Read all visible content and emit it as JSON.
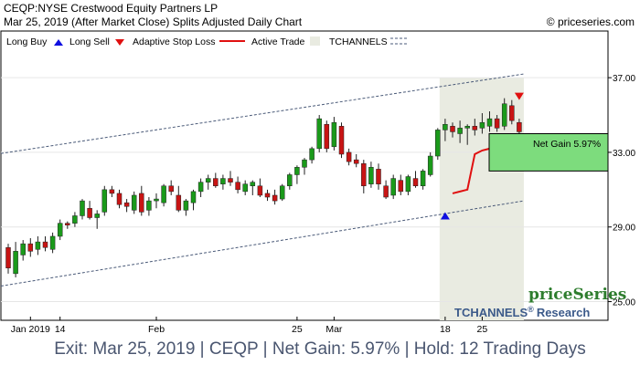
{
  "header": {
    "symbol_line": "CEQP:NYSE Crestwood Equity Partners LP",
    "date_line": "Mar 25, 2019 (After Market Close)  Splits Adjusted Daily Chart",
    "copyright": "© priceseries.com"
  },
  "legend": {
    "long_buy": "Long Buy",
    "long_sell": "Long Sell",
    "adaptive_stop": "Adaptive Stop Loss",
    "active_trade": "Active Trade",
    "tchannels": "TCHANNELS"
  },
  "watermark": {
    "brand": "priceSeries",
    "research": "TCHANNELS",
    "research_suffix": "Research",
    "registered": "®"
  },
  "annotation": {
    "net_gain": "Net Gain 5.97%"
  },
  "footer": {
    "text": "Exit: Mar 25, 2019 | CEQP | Net Gain: 5.97% | Hold: 12 Trading Days"
  },
  "colors": {
    "up_candle": "#1a9a1a",
    "down_candle": "#c81414",
    "stop_line": "#e01010",
    "active_trade_fill": "#e9ebe1",
    "gain_box": "#7ddc7d",
    "buy_arrow": "#1010e0",
    "sell_arrow": "#e01010",
    "channel": "#4a5a78",
    "footer_text": "#4a5670"
  },
  "chart_data": {
    "type": "candlestick",
    "y_ticks": [
      "37.00",
      "33.00",
      "29.00",
      "25.00"
    ],
    "ylim": [
      24.0,
      39.5
    ],
    "x_ticks": [
      {
        "label": "Jan 2019",
        "index": 3
      },
      {
        "label": "14",
        "index": 7
      },
      {
        "label": "Feb",
        "index": 20
      },
      {
        "label": "25",
        "index": 39
      },
      {
        "label": "Mar",
        "index": 44
      },
      {
        "label": "18",
        "index": 59
      },
      {
        "label": "25",
        "index": 64
      }
    ],
    "candles": [
      {
        "o": 27.9,
        "h": 28.1,
        "l": 26.5,
        "c": 26.8
      },
      {
        "o": 26.5,
        "h": 28.2,
        "l": 26.3,
        "c": 27.7
      },
      {
        "o": 27.5,
        "h": 28.3,
        "l": 27.2,
        "c": 28.1
      },
      {
        "o": 28.1,
        "h": 28.4,
        "l": 27.4,
        "c": 27.7
      },
      {
        "o": 27.8,
        "h": 28.5,
        "l": 27.5,
        "c": 28.2
      },
      {
        "o": 28.2,
        "h": 28.5,
        "l": 27.7,
        "c": 27.9
      },
      {
        "o": 27.8,
        "h": 28.7,
        "l": 27.6,
        "c": 28.5
      },
      {
        "o": 28.5,
        "h": 29.4,
        "l": 28.3,
        "c": 29.2
      },
      {
        "o": 29.2,
        "h": 29.3,
        "l": 28.9,
        "c": 29.1
      },
      {
        "o": 29.2,
        "h": 29.8,
        "l": 29.0,
        "c": 29.6
      },
      {
        "o": 29.6,
        "h": 30.5,
        "l": 29.4,
        "c": 30.4
      },
      {
        "o": 30.0,
        "h": 30.4,
        "l": 29.4,
        "c": 29.5
      },
      {
        "o": 29.5,
        "h": 29.9,
        "l": 28.9,
        "c": 29.7
      },
      {
        "o": 29.8,
        "h": 31.2,
        "l": 29.6,
        "c": 31.0
      },
      {
        "o": 31.0,
        "h": 31.2,
        "l": 30.6,
        "c": 30.8
      },
      {
        "o": 30.8,
        "h": 31.0,
        "l": 30.0,
        "c": 30.2
      },
      {
        "o": 30.3,
        "h": 30.5,
        "l": 29.8,
        "c": 30.1
      },
      {
        "o": 29.9,
        "h": 30.9,
        "l": 29.7,
        "c": 30.7
      },
      {
        "o": 30.8,
        "h": 31.2,
        "l": 29.6,
        "c": 29.8
      },
      {
        "o": 29.9,
        "h": 30.6,
        "l": 29.6,
        "c": 30.4
      },
      {
        "o": 30.4,
        "h": 30.8,
        "l": 30.0,
        "c": 30.5
      },
      {
        "o": 30.3,
        "h": 31.3,
        "l": 30.1,
        "c": 31.2
      },
      {
        "o": 31.2,
        "h": 31.5,
        "l": 30.7,
        "c": 30.9
      },
      {
        "o": 30.7,
        "h": 31.2,
        "l": 29.8,
        "c": 29.9
      },
      {
        "o": 29.9,
        "h": 30.5,
        "l": 29.6,
        "c": 30.4
      },
      {
        "o": 30.3,
        "h": 31.0,
        "l": 29.9,
        "c": 30.9
      },
      {
        "o": 30.9,
        "h": 31.6,
        "l": 30.6,
        "c": 31.4
      },
      {
        "o": 31.4,
        "h": 31.8,
        "l": 31.0,
        "c": 31.6
      },
      {
        "o": 31.6,
        "h": 31.9,
        "l": 31.1,
        "c": 31.2
      },
      {
        "o": 31.3,
        "h": 31.8,
        "l": 31.0,
        "c": 31.6
      },
      {
        "o": 31.6,
        "h": 32.0,
        "l": 31.2,
        "c": 31.4
      },
      {
        "o": 31.4,
        "h": 31.7,
        "l": 30.8,
        "c": 31.0
      },
      {
        "o": 30.9,
        "h": 31.5,
        "l": 30.7,
        "c": 31.3
      },
      {
        "o": 31.2,
        "h": 31.5,
        "l": 30.7,
        "c": 31.4
      },
      {
        "o": 31.2,
        "h": 31.6,
        "l": 30.6,
        "c": 30.7
      },
      {
        "o": 30.8,
        "h": 31.0,
        "l": 30.4,
        "c": 30.6
      },
      {
        "o": 30.7,
        "h": 31.0,
        "l": 30.2,
        "c": 30.4
      },
      {
        "o": 30.5,
        "h": 31.3,
        "l": 30.4,
        "c": 31.2
      },
      {
        "o": 31.2,
        "h": 31.9,
        "l": 31.0,
        "c": 31.8
      },
      {
        "o": 31.8,
        "h": 32.3,
        "l": 31.3,
        "c": 32.2
      },
      {
        "o": 32.2,
        "h": 32.7,
        "l": 31.8,
        "c": 32.6
      },
      {
        "o": 32.6,
        "h": 33.3,
        "l": 32.4,
        "c": 33.2
      },
      {
        "o": 33.2,
        "h": 35.0,
        "l": 33.0,
        "c": 34.8
      },
      {
        "o": 34.5,
        "h": 34.7,
        "l": 33.0,
        "c": 33.2
      },
      {
        "o": 33.3,
        "h": 34.9,
        "l": 33.1,
        "c": 34.6
      },
      {
        "o": 34.4,
        "h": 34.6,
        "l": 32.7,
        "c": 32.9
      },
      {
        "o": 33.0,
        "h": 33.2,
        "l": 32.3,
        "c": 32.5
      },
      {
        "o": 32.6,
        "h": 32.9,
        "l": 32.2,
        "c": 32.4
      },
      {
        "o": 32.4,
        "h": 32.6,
        "l": 30.8,
        "c": 31.2
      },
      {
        "o": 31.3,
        "h": 32.5,
        "l": 31.1,
        "c": 32.2
      },
      {
        "o": 32.1,
        "h": 32.4,
        "l": 31.0,
        "c": 31.3
      },
      {
        "o": 31.2,
        "h": 31.5,
        "l": 30.5,
        "c": 30.6
      },
      {
        "o": 30.7,
        "h": 31.8,
        "l": 30.5,
        "c": 31.6
      },
      {
        "o": 31.5,
        "h": 31.8,
        "l": 30.7,
        "c": 30.9
      },
      {
        "o": 30.9,
        "h": 31.8,
        "l": 30.7,
        "c": 31.7
      },
      {
        "o": 31.6,
        "h": 32.0,
        "l": 31.1,
        "c": 31.2
      },
      {
        "o": 31.2,
        "h": 32.1,
        "l": 31.0,
        "c": 32.0
      },
      {
        "o": 31.8,
        "h": 33.0,
        "l": 31.7,
        "c": 32.8
      },
      {
        "o": 32.8,
        "h": 34.3,
        "l": 32.6,
        "c": 34.2
      },
      {
        "o": 34.2,
        "h": 34.8,
        "l": 33.6,
        "c": 34.5
      },
      {
        "o": 34.4,
        "h": 34.6,
        "l": 33.8,
        "c": 34.1
      },
      {
        "o": 34.0,
        "h": 34.7,
        "l": 33.5,
        "c": 34.3
      },
      {
        "o": 34.3,
        "h": 34.5,
        "l": 33.4,
        "c": 34.4
      },
      {
        "o": 34.4,
        "h": 34.8,
        "l": 33.9,
        "c": 34.2
      },
      {
        "o": 34.3,
        "h": 35.1,
        "l": 34.0,
        "c": 34.6
      },
      {
        "o": 34.4,
        "h": 35.2,
        "l": 34.1,
        "c": 34.8
      },
      {
        "o": 34.8,
        "h": 35.0,
        "l": 34.1,
        "c": 34.3
      },
      {
        "o": 34.4,
        "h": 35.9,
        "l": 34.2,
        "c": 35.6
      },
      {
        "o": 35.5,
        "h": 35.8,
        "l": 34.5,
        "c": 34.7
      },
      {
        "o": 34.6,
        "h": 34.8,
        "l": 33.8,
        "c": 34.1
      }
    ],
    "adaptive_stop": [
      {
        "i": 60,
        "v": 30.8
      },
      {
        "i": 61,
        "v": 30.9
      },
      {
        "i": 62,
        "v": 31.0
      },
      {
        "i": 63,
        "v": 32.9
      },
      {
        "i": 64,
        "v": 33.1
      },
      {
        "i": 65,
        "v": 33.2
      },
      {
        "i": 66,
        "v": 33.3
      },
      {
        "i": 67,
        "v": 33.35
      },
      {
        "i": 68,
        "v": 33.5
      },
      {
        "i": 69,
        "v": 33.8
      }
    ],
    "channel_upper": [
      {
        "i": 0,
        "v": 33.0
      },
      {
        "i": 69,
        "v": 37.2
      }
    ],
    "channel_lower": [
      {
        "i": 0,
        "v": 25.9
      },
      {
        "i": 69,
        "v": 30.4
      }
    ],
    "active_trade": {
      "start": 59,
      "end": 69
    },
    "buy_signal": {
      "i": 59,
      "v": 29.6
    },
    "sell_signal": {
      "i": 69,
      "v": 36.0
    },
    "gain_box": {
      "low": 32.0,
      "high": 34.0
    }
  }
}
